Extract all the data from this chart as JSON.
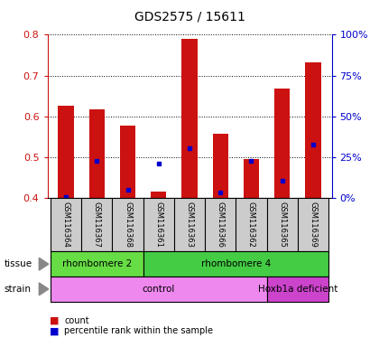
{
  "title": "GDS2575 / 15611",
  "samples": [
    "GSM116364",
    "GSM116367",
    "GSM116368",
    "GSM116361",
    "GSM116363",
    "GSM116366",
    "GSM116362",
    "GSM116365",
    "GSM116369"
  ],
  "count_values": [
    0.625,
    0.618,
    0.578,
    0.415,
    0.79,
    0.558,
    0.495,
    0.668,
    0.732
  ],
  "percentile_values": [
    0.402,
    0.49,
    0.42,
    0.485,
    0.522,
    0.412,
    0.49,
    0.442,
    0.53
  ],
  "y_min": 0.4,
  "y_max": 0.8,
  "y_ticks": [
    0.4,
    0.5,
    0.6,
    0.7,
    0.8
  ],
  "right_y_ticks": [
    0,
    25,
    50,
    75,
    100
  ],
  "right_y_labels": [
    "0%",
    "25%",
    "50%",
    "75%",
    "100%"
  ],
  "bar_color": "#cc1111",
  "dot_color": "#0000cc",
  "bar_width": 0.5,
  "tissue_groups": [
    {
      "label": "rhombomere 2",
      "start": 0,
      "end": 3,
      "color": "#66dd44"
    },
    {
      "label": "rhombomere 4",
      "start": 3,
      "end": 9,
      "color": "#44cc44"
    }
  ],
  "strain_groups": [
    {
      "label": "control",
      "start": 0,
      "end": 7,
      "color": "#ee88ee"
    },
    {
      "label": "Hoxb1a deficient",
      "start": 7,
      "end": 9,
      "color": "#cc44cc"
    }
  ],
  "legend_items": [
    {
      "label": "count",
      "color": "#cc1111"
    },
    {
      "label": "percentile rank within the sample",
      "color": "#0000cc"
    }
  ],
  "tissue_label": "tissue",
  "strain_label": "strain",
  "bar_color_left_axis": "#cc1111",
  "right_axis_color": "#0000cc",
  "grid_color": "#000000",
  "bg_color": "#ffffff",
  "xlabel_bg": "#cccccc"
}
